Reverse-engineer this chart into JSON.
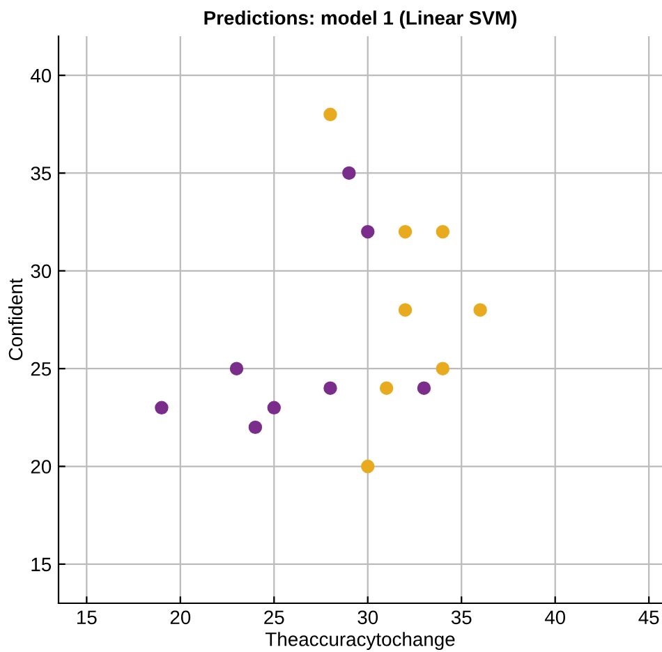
{
  "chart_data": {
    "type": "scatter",
    "title": "Predictions: model 1 (Linear SVM)",
    "xlabel": "Theaccuracytochange",
    "ylabel": "Confident",
    "series": [
      {
        "color": "#7b2d8b",
        "x": [
          19,
          23,
          24,
          25,
          28,
          29,
          30,
          33
        ],
        "values": [
          23,
          25,
          22,
          23,
          24,
          35,
          32,
          24
        ]
      },
      {
        "color": "#e8ab1f",
        "x": [
          28,
          32,
          34,
          32,
          36,
          34,
          31,
          30
        ],
        "values": [
          38,
          32,
          32,
          28,
          28,
          25,
          24,
          20
        ]
      }
    ],
    "xlim": [
      13.5,
      45.7
    ],
    "ylim": [
      13,
      42
    ],
    "xticks": [
      15,
      20,
      25,
      30,
      35,
      40,
      45
    ],
    "yticks": [
      15,
      20,
      25,
      30,
      35,
      40
    ],
    "grid": true,
    "marker": "circle"
  }
}
